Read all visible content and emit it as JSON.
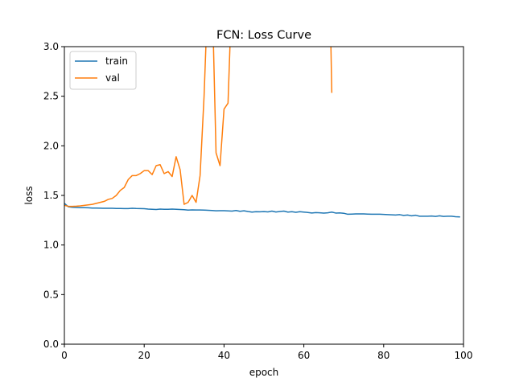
{
  "chart_data": {
    "type": "line",
    "title": "FCN: Loss Curve",
    "xlabel": "epoch",
    "ylabel": "loss",
    "xlim": [
      0,
      100
    ],
    "ylim": [
      0,
      3.0
    ],
    "xticks": [
      0,
      20,
      40,
      60,
      80,
      100
    ],
    "yticks": [
      0.0,
      0.5,
      1.0,
      1.5,
      2.0,
      2.5,
      3.0
    ],
    "ytick_labels": [
      "0.0",
      "0.5",
      "1.0",
      "1.5",
      "2.0",
      "2.5",
      "3.0"
    ],
    "grid": false,
    "legend_position": "top-left",
    "series": [
      {
        "name": "train",
        "color": "#1f77b4",
        "x": [
          0,
          1,
          2,
          3,
          4,
          5,
          6,
          7,
          8,
          9,
          10,
          11,
          12,
          13,
          14,
          15,
          16,
          17,
          18,
          19,
          20,
          21,
          22,
          23,
          24,
          25,
          26,
          27,
          28,
          29,
          30,
          31,
          32,
          33,
          34,
          35,
          36,
          37,
          38,
          39,
          40,
          41,
          42,
          43,
          44,
          45,
          46,
          47,
          48,
          49,
          50,
          51,
          52,
          53,
          54,
          55,
          56,
          57,
          58,
          59,
          60,
          61,
          62,
          63,
          64,
          65,
          66,
          67,
          68,
          69,
          70,
          71,
          72,
          73,
          74,
          75,
          76,
          77,
          78,
          79,
          80,
          81,
          82,
          83,
          84,
          85,
          86,
          87,
          88,
          89,
          90,
          91,
          92,
          93,
          94,
          95,
          96,
          97,
          98,
          99
        ],
        "values": [
          1.42,
          1.385,
          1.38,
          1.378,
          1.376,
          1.376,
          1.375,
          1.372,
          1.372,
          1.371,
          1.37,
          1.37,
          1.37,
          1.368,
          1.368,
          1.367,
          1.367,
          1.37,
          1.368,
          1.367,
          1.366,
          1.362,
          1.36,
          1.358,
          1.362,
          1.36,
          1.36,
          1.362,
          1.36,
          1.358,
          1.356,
          1.352,
          1.354,
          1.353,
          1.353,
          1.352,
          1.35,
          1.348,
          1.345,
          1.346,
          1.346,
          1.344,
          1.342,
          1.348,
          1.34,
          1.345,
          1.338,
          1.332,
          1.336,
          1.335,
          1.337,
          1.334,
          1.342,
          1.333,
          1.338,
          1.342,
          1.332,
          1.336,
          1.33,
          1.336,
          1.332,
          1.328,
          1.323,
          1.327,
          1.325,
          1.322,
          1.325,
          1.332,
          1.322,
          1.324,
          1.32,
          1.31,
          1.312,
          1.313,
          1.314,
          1.313,
          1.312,
          1.31,
          1.31,
          1.31,
          1.308,
          1.306,
          1.304,
          1.302,
          1.306,
          1.298,
          1.302,
          1.294,
          1.3,
          1.29,
          1.29,
          1.29,
          1.292,
          1.288,
          1.294,
          1.288,
          1.29,
          1.29,
          1.285,
          1.283
        ]
      },
      {
        "name": "val",
        "color": "#ff7f0e",
        "x": [
          0,
          1,
          2,
          3,
          4,
          5,
          6,
          7,
          8,
          9,
          10,
          11,
          12,
          13,
          14,
          15,
          16,
          17,
          18,
          19,
          20,
          21,
          22,
          23,
          24,
          25,
          26,
          27,
          28,
          29,
          30,
          31,
          32,
          33,
          34,
          35,
          36,
          37,
          38,
          39,
          40,
          41,
          42,
          66.5,
          67
        ],
        "values": [
          1.4,
          1.39,
          1.39,
          1.392,
          1.395,
          1.4,
          1.405,
          1.41,
          1.42,
          1.43,
          1.44,
          1.46,
          1.47,
          1.5,
          1.55,
          1.58,
          1.66,
          1.7,
          1.7,
          1.72,
          1.75,
          1.75,
          1.71,
          1.8,
          1.81,
          1.72,
          1.74,
          1.69,
          1.89,
          1.76,
          1.41,
          1.43,
          1.5,
          1.43,
          1.7,
          2.5,
          3.6,
          3.6,
          1.93,
          1.8,
          2.37,
          2.43,
          3.6,
          3.6,
          2.54
        ]
      }
    ]
  }
}
